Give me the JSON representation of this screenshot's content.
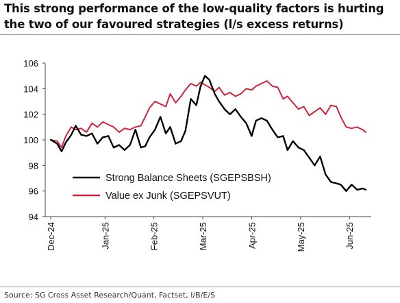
{
  "title": "This strong performance of the low-quality factors is hurting the two of our favoured strategies (l/s excess returns)",
  "source": "Source: SG Cross Asset Research/Quant, Factset, I/B/E/S",
  "chart_data": {
    "type": "line",
    "ylim": [
      94,
      106
    ],
    "yticks": [
      94,
      96,
      98,
      100,
      102,
      104,
      106
    ],
    "xlim": [
      0,
      29
    ],
    "x_ticks": [
      {
        "x": 0,
        "label": "Dec-24"
      },
      {
        "x": 5,
        "label": "Jan-25"
      },
      {
        "x": 9.5,
        "label": "Feb-25"
      },
      {
        "x": 14,
        "label": "Mar-25"
      },
      {
        "x": 18.5,
        "label": "Apr-25"
      },
      {
        "x": 23,
        "label": "May-25"
      },
      {
        "x": 27.5,
        "label": "Jun-25"
      }
    ],
    "legend_position": "lower-left",
    "grid": false,
    "series": [
      {
        "name": "Strong Balance Sheets (SGEPSBSH)",
        "color": "#000000",
        "x": [
          0,
          0.6,
          1.0,
          1.4,
          1.9,
          2.3,
          2.8,
          3.3,
          3.8,
          4.3,
          4.8,
          5.3,
          5.8,
          6.3,
          6.8,
          7.3,
          7.8,
          8.3,
          8.7,
          9.1,
          9.6,
          10.1,
          10.6,
          11.0,
          11.5,
          12.0,
          12.4,
          12.9,
          13.4,
          13.8,
          14.2,
          14.6,
          15.1,
          15.5,
          16.0,
          16.5,
          17.0,
          17.5,
          18.0,
          18.5,
          18.9,
          19.4,
          19.9,
          20.4,
          20.9,
          21.4,
          21.8,
          22.3,
          22.8,
          23.3,
          23.8,
          24.3,
          24.8,
          25.3,
          25.8,
          26.3,
          26.7,
          27.2,
          27.7,
          28.2,
          28.7,
          29.0
        ],
        "values": [
          100.0,
          99.7,
          99.1,
          99.8,
          100.4,
          101.1,
          100.4,
          100.3,
          100.5,
          99.7,
          100.2,
          100.3,
          99.4,
          99.6,
          99.2,
          99.6,
          100.8,
          99.4,
          99.5,
          100.2,
          100.8,
          101.8,
          100.5,
          101.0,
          99.7,
          99.9,
          100.7,
          103.2,
          102.7,
          104.2,
          105.0,
          104.7,
          103.6,
          103.0,
          102.4,
          102.0,
          102.4,
          101.8,
          101.3,
          100.3,
          101.5,
          101.7,
          101.5,
          100.8,
          100.2,
          100.3,
          99.2,
          99.9,
          99.4,
          99.2,
          98.6,
          98.0,
          98.7,
          97.3,
          96.7,
          96.6,
          96.5,
          96.0,
          96.5,
          96.1,
          96.2,
          96.1
        ]
      },
      {
        "name": "Value ex Junk (SGEPSVUT)",
        "color": "#d1223a",
        "x": [
          0,
          0.6,
          1.0,
          1.4,
          1.9,
          2.3,
          2.8,
          3.3,
          3.8,
          4.3,
          4.8,
          5.3,
          5.8,
          6.3,
          6.8,
          7.3,
          7.8,
          8.3,
          8.7,
          9.1,
          9.6,
          10.1,
          10.6,
          11.0,
          11.5,
          12.0,
          12.4,
          12.9,
          13.4,
          13.8,
          14.2,
          14.6,
          15.1,
          15.5,
          16.0,
          16.5,
          17.0,
          17.5,
          18.0,
          18.5,
          18.9,
          19.4,
          19.9,
          20.4,
          20.9,
          21.4,
          21.8,
          22.3,
          22.8,
          23.3,
          23.8,
          24.3,
          24.8,
          25.3,
          25.8,
          26.3,
          26.7,
          27.2,
          27.7,
          28.2,
          28.7,
          29.0
        ],
        "values": [
          100.0,
          99.9,
          99.4,
          100.3,
          101.0,
          100.8,
          100.9,
          100.6,
          101.3,
          101.0,
          101.4,
          101.2,
          101.0,
          100.6,
          100.9,
          100.8,
          101.0,
          101.1,
          101.8,
          102.5,
          103.0,
          102.8,
          102.6,
          103.6,
          102.9,
          103.4,
          103.9,
          104.4,
          104.2,
          104.5,
          104.3,
          104.1,
          103.8,
          104.1,
          103.5,
          103.7,
          103.4,
          103.6,
          104.0,
          103.9,
          104.2,
          104.4,
          104.6,
          104.2,
          104.1,
          103.2,
          103.4,
          102.9,
          102.4,
          102.6,
          101.9,
          102.2,
          102.5,
          102.0,
          102.7,
          102.6,
          101.8,
          101.0,
          100.9,
          101.0,
          100.8,
          100.6
        ]
      }
    ]
  }
}
